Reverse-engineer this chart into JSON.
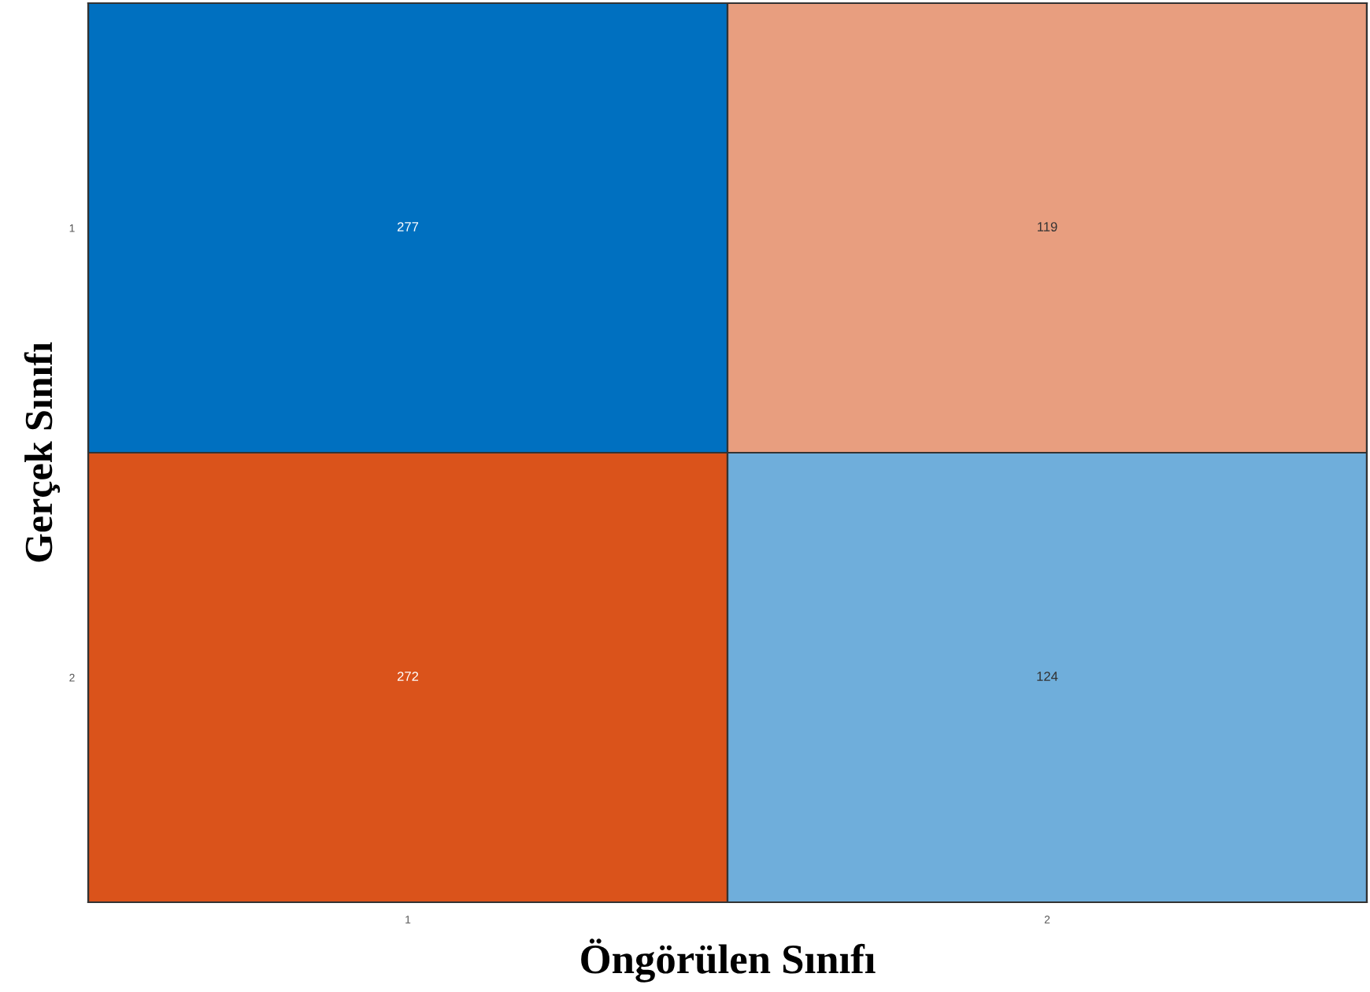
{
  "chart_data": {
    "type": "heatmap",
    "xlabel": "Öngörülen Sınıfı",
    "ylabel": "Gerçek Sınıfı",
    "categories": [
      "1",
      "2"
    ],
    "y_categories": [
      "1",
      "2"
    ],
    "cells": [
      [
        277,
        119
      ],
      [
        272,
        124
      ]
    ],
    "colors": [
      "#0070c0",
      "#e89e7f",
      "#da531b",
      "#6faedb"
    ],
    "data_labels": true
  }
}
